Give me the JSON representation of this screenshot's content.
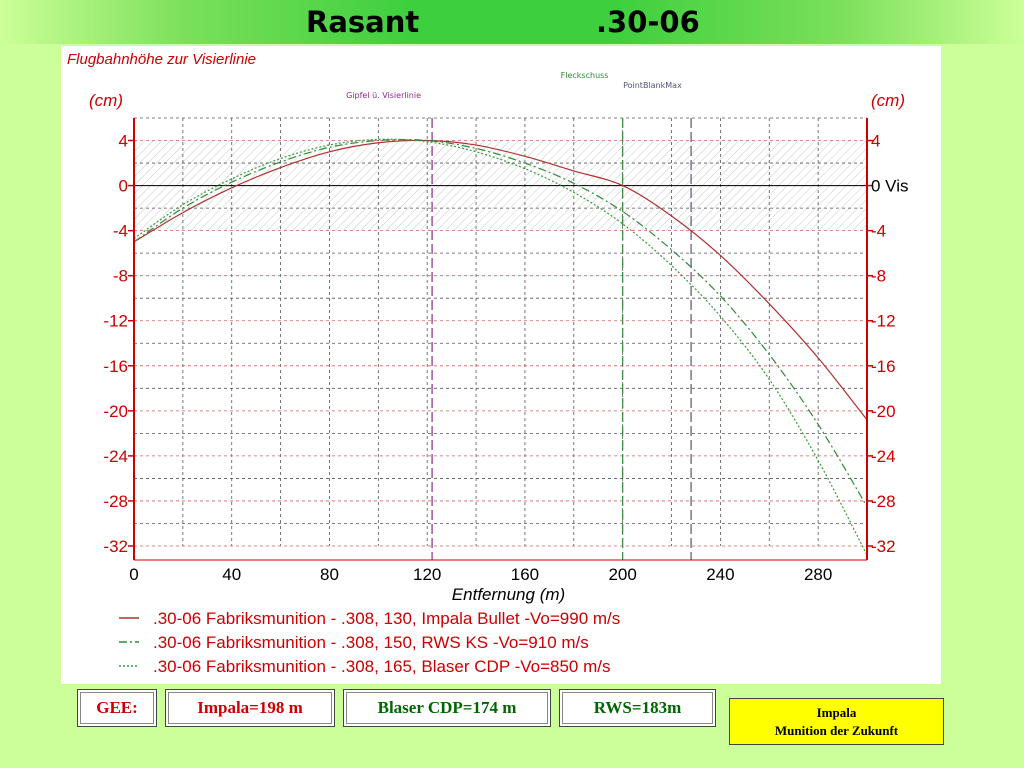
{
  "header": {
    "title_left": "Rasant",
    "title_right": ".30-06"
  },
  "colors": {
    "background": "#ccff99",
    "title_green": "#3ecf3e",
    "axis_red": "#cc0000",
    "impala_series": "#b03030",
    "rws_series": "#2e8b3a",
    "blaser_series": "#3a9a3a",
    "marker_purple": "#8a2b8a",
    "slogan_yellow": "#ffff00"
  },
  "chart_data": {
    "type": "line",
    "title": "Flugbahnhöhe zur Visierlinie",
    "ylabel": "(cm)",
    "ylabel_right": "(cm)",
    "xlabel": "Entfernung (m)",
    "xlim": [
      0,
      300
    ],
    "ylim": [
      -32,
      4
    ],
    "x_ticks": [
      0,
      40,
      80,
      120,
      160,
      200,
      240,
      280
    ],
    "y_ticks": [
      4,
      0,
      -4,
      -8,
      -12,
      -16,
      -20,
      -24,
      -28,
      -32
    ],
    "y_tick_labels_right": [
      "4",
      "0 Vis",
      "-4",
      "-8",
      "-12",
      "-16",
      "-20",
      "-24",
      "-28",
      "-32"
    ],
    "grid": true,
    "hatched_band": [
      -4,
      4
    ],
    "sight_line": 0,
    "vertical_markers": [
      {
        "x": 122,
        "label": "Gipfel ü. Visierlinie",
        "color": "#8a2b8a"
      },
      {
        "x": 200,
        "label": "Fleckschuss",
        "color": "#2e8b3a"
      },
      {
        "x": 228,
        "label": "PointBlankMax",
        "color": "#555577"
      }
    ],
    "series": [
      {
        "name": ".30-06 Fabriksmunition - .308, 130, Impala Bullet -Vo=990 m/s",
        "style": "solid",
        "color": "#b03030",
        "x": [
          0,
          20,
          40,
          60,
          80,
          100,
          120,
          140,
          160,
          180,
          200,
          220,
          240,
          260,
          280,
          300
        ],
        "y": [
          -5.0,
          -2.4,
          -0.2,
          1.6,
          3.0,
          3.8,
          4.0,
          3.6,
          2.6,
          1.3,
          0.0,
          -2.7,
          -6.2,
          -10.5,
          -15.3,
          -20.8
        ]
      },
      {
        "name": ".30-06 Fabriksmunition - .308, 150, RWS KS -Vo=910 m/s",
        "style": "dashdot",
        "color": "#2e8b3a",
        "x": [
          0,
          20,
          40,
          60,
          80,
          100,
          120,
          140,
          160,
          180,
          200,
          220,
          240,
          260,
          280,
          300
        ],
        "y": [
          -5.0,
          -2.0,
          0.3,
          2.1,
          3.4,
          4.0,
          4.0,
          3.3,
          2.0,
          0.2,
          -2.3,
          -5.7,
          -9.8,
          -15.0,
          -21.2,
          -28.5
        ]
      },
      {
        "name": ".30-06 Fabriksmunition - .308, 165, Blaser CDP -Vo=850 m/s",
        "style": "dotted",
        "color": "#3a9a3a",
        "x": [
          0,
          20,
          40,
          60,
          80,
          100,
          120,
          140,
          160,
          180,
          200,
          220,
          240,
          260,
          280,
          300
        ],
        "y": [
          -4.7,
          -1.7,
          0.6,
          2.4,
          3.6,
          4.1,
          3.9,
          3.0,
          1.5,
          -0.6,
          -3.4,
          -7.1,
          -11.6,
          -17.2,
          -24.4,
          -32.8
        ]
      }
    ]
  },
  "info": {
    "gee_label": "GEE:",
    "impala": "Impala=198 m",
    "blaser": "Blaser CDP=174 m",
    "rws": "RWS=183m"
  },
  "slogan": {
    "line1": "Impala",
    "line2": "Munition der Zukunft"
  }
}
